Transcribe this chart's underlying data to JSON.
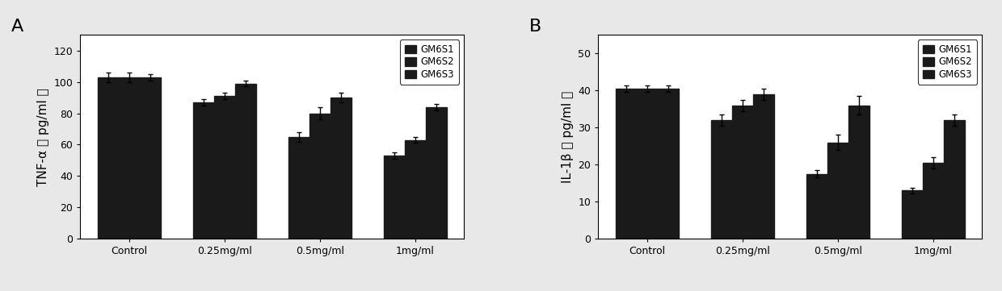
{
  "panel_A": {
    "label": "A",
    "ylabel": "TNF-α（pg/ml）",
    "ylabel_plain": "TNF-α （ pg/ml ）",
    "categories": [
      "Control",
      "0.25mg/ml",
      "0.5mg/ml",
      "1mg/ml"
    ],
    "series": {
      "GM6S1": [
        103,
        87,
        65,
        53
      ],
      "GM6S2": [
        103,
        91,
        80,
        63
      ],
      "GM6S3": [
        103,
        99,
        90,
        84
      ]
    },
    "errors": {
      "GM6S1": [
        3,
        2,
        3,
        2
      ],
      "GM6S2": [
        3,
        2,
        4,
        2
      ],
      "GM6S3": [
        2,
        2,
        3,
        2
      ]
    },
    "ylim": [
      0,
      130
    ],
    "yticks": [
      0,
      20,
      40,
      60,
      80,
      100,
      120
    ]
  },
  "panel_B": {
    "label": "B",
    "ylabel": "IL-1β（pg/ml）",
    "ylabel_plain": "IL-1β （ pg/ml ）",
    "categories": [
      "Control",
      "0.25mg/ml",
      "0.5mg/ml",
      "1mg/ml"
    ],
    "series": {
      "GM6S1": [
        40.5,
        32,
        17.5,
        13
      ],
      "GM6S2": [
        40.5,
        36,
        26,
        20.5
      ],
      "GM6S3": [
        40.5,
        39,
        36,
        32
      ]
    },
    "errors": {
      "GM6S1": [
        0.8,
        1.5,
        1.0,
        0.8
      ],
      "GM6S2": [
        0.8,
        1.5,
        2.0,
        1.5
      ],
      "GM6S3": [
        0.8,
        1.5,
        2.5,
        1.5
      ]
    },
    "ylim": [
      0,
      55
    ],
    "yticks": [
      0,
      10,
      20,
      30,
      40,
      50
    ]
  },
  "bar_color": "#1a1a1a",
  "bar_width": 0.22,
  "legend_labels": [
    "GM6S1",
    "GM6S2",
    "GM6S3"
  ],
  "background_color": "#e8e8e8",
  "axes_facecolor": "#ffffff",
  "label_fontsize": 11,
  "tick_fontsize": 9,
  "legend_fontsize": 8.5,
  "panel_label_fontsize": 16
}
